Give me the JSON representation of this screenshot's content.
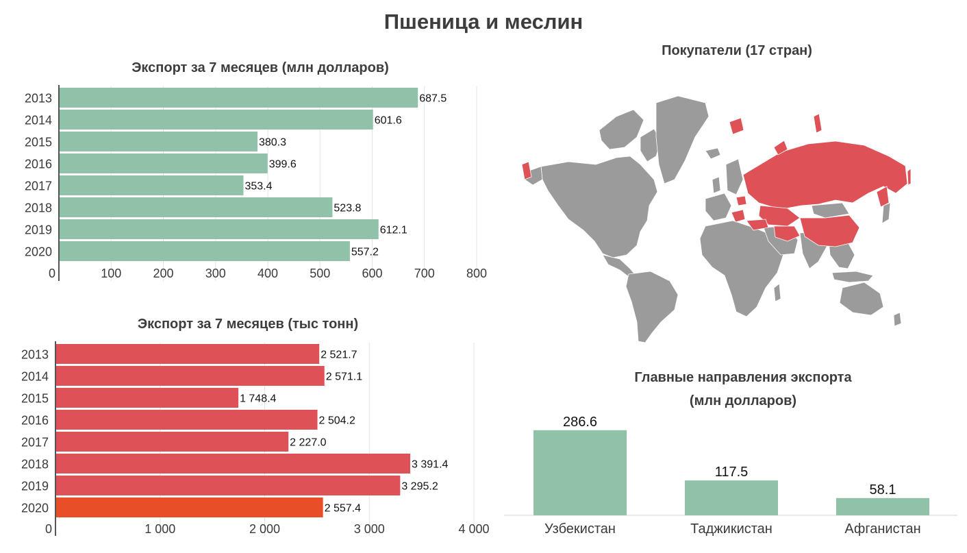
{
  "page": {
    "title": "Пшеница и меслин"
  },
  "colors": {
    "green": "#8fc2a8",
    "red": "#dd5157",
    "orange": "#e84e28",
    "map_gray": "#9b9b9b",
    "map_red": "#dd5157"
  },
  "chart_data": [
    {
      "id": "export_value",
      "type": "bar",
      "orientation": "horizontal",
      "title": "Экспорт за 7 месяцев (млн долларов)",
      "categories": [
        "2013",
        "2014",
        "2015",
        "2016",
        "2017",
        "2018",
        "2019",
        "2020"
      ],
      "values": [
        687.5,
        601.6,
        380.3,
        399.6,
        353.4,
        523.8,
        612.1,
        557.2
      ],
      "value_labels": [
        "687.5",
        "601.6",
        "380.3",
        "399.6",
        "353.4",
        "523.8",
        "612.1",
        "557.2"
      ],
      "xlim": [
        0,
        800
      ],
      "x_ticks": [
        0,
        100,
        200,
        300,
        400,
        500,
        600,
        700,
        800
      ],
      "x_tick_labels": [
        "0",
        "100",
        "200",
        "300",
        "400",
        "500",
        "600",
        "700",
        "800"
      ],
      "color": "#8fc2a8",
      "grid": true
    },
    {
      "id": "export_volume",
      "type": "bar",
      "orientation": "horizontal",
      "title": "Экспорт за 7 месяцев (тыс тонн)",
      "categories": [
        "2013",
        "2014",
        "2015",
        "2016",
        "2017",
        "2018",
        "2019",
        "2020"
      ],
      "values": [
        2521.7,
        2571.1,
        1748.4,
        2504.2,
        2227.0,
        3391.4,
        3295.2,
        2557.4
      ],
      "value_labels": [
        "2 521.7",
        "2 571.1",
        "1 748.4",
        "2 504.2",
        "2 227.0",
        "3 391.4",
        "3 295.2",
        "2 557.4"
      ],
      "xlim": [
        0,
        4000
      ],
      "x_ticks": [
        0,
        1000,
        2000,
        3000,
        4000
      ],
      "x_tick_labels": [
        "0",
        "1 000",
        "2 000",
        "3 000",
        "4 000"
      ],
      "color": "#dd5157",
      "highlight_color": "#e84e28",
      "highlight_index": 7,
      "grid": true
    },
    {
      "id": "destinations",
      "type": "bar",
      "orientation": "vertical",
      "title": "Главные направления экспорта",
      "subtitle": "(млн долларов)",
      "categories": [
        "Узбекистан",
        "Таджикистан",
        "Афганистан"
      ],
      "values": [
        286.6,
        117.5,
        58.1
      ],
      "value_labels": [
        "286.6",
        "117.5",
        "58.1"
      ],
      "color": "#8fc2a8"
    }
  ],
  "map": {
    "title": "Покупатели (17 стран)",
    "legend": {
      "buyers_color": "#dd5157",
      "others_color": "#9b9b9b"
    }
  }
}
